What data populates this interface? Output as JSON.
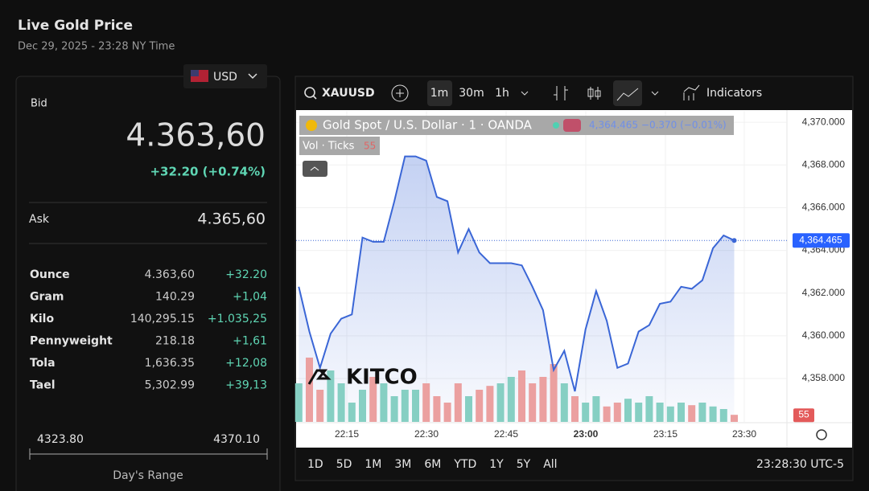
{
  "header": {
    "title": "Live Gold Price",
    "timestamp": "Dec 29, 2025 - 23:28 NY Time"
  },
  "currency": "USD",
  "quote": {
    "bid_label": "Bid",
    "bid": "4.363,60",
    "change": "+32.20 (+0.74%)",
    "ask_label": "Ask",
    "ask": "4.365,60"
  },
  "table": {
    "rows": [
      [
        "Ounce",
        "4.363,60",
        "+32.20"
      ],
      [
        "Gram",
        "140.29",
        "+1,04"
      ],
      [
        "Kilo",
        "140,295.15",
        "+1.035,25"
      ],
      [
        "Pennyweight",
        "218.18",
        "+1,61"
      ],
      [
        "Tola",
        "1,636.35",
        "+12,08"
      ],
      [
        "Tael",
        "5,302.99",
        "+39,13"
      ]
    ]
  },
  "range": {
    "low": "4323.80",
    "high": "4370.10",
    "label": "Day's Range"
  },
  "toolbar": {
    "symbol": "XAUUSD",
    "intervals": [
      "1m",
      "30m",
      "1h"
    ],
    "indicators": "Indicators"
  },
  "chart": {
    "type": "area",
    "title": "Gold Spot / U.S. Dollar · 1 · OANDA",
    "legend_values": "4,364.465 −0.370 (−0.01%)",
    "watermark": "KITCO",
    "x": [
      "22:06",
      "22:08",
      "22:10",
      "22:12",
      "22:14",
      "22:16",
      "22:18",
      "22:20",
      "22:22",
      "22:24",
      "22:26",
      "22:28",
      "22:30",
      "22:32",
      "22:34",
      "22:36",
      "22:38",
      "22:40",
      "22:42",
      "22:44",
      "22:46",
      "22:48",
      "22:50",
      "22:52",
      "22:54",
      "22:56",
      "22:58",
      "23:00",
      "23:02",
      "23:04",
      "23:06",
      "23:08",
      "23:10",
      "23:12",
      "23:14",
      "23:16",
      "23:18",
      "23:20",
      "23:22",
      "23:24",
      "23:26",
      "23:28"
    ],
    "values": [
      4362.3,
      4360.2,
      4358.5,
      4360.1,
      4360.8,
      4361.0,
      4364.6,
      4364.4,
      4364.4,
      4366.3,
      4368.4,
      4368.4,
      4368.2,
      4366.5,
      4366.3,
      4363.9,
      4365.0,
      4363.9,
      4363.4,
      4363.4,
      4363.4,
      4363.3,
      4362.3,
      4361.2,
      4358.4,
      4359.3,
      4357.4,
      4360.3,
      4362.1,
      4360.7,
      4358.5,
      4358.7,
      4360.2,
      4360.5,
      4361.5,
      4361.6,
      4362.3,
      4362.2,
      4362.6,
      4364.1,
      4364.7,
      4364.465
    ],
    "color": "#3a66d6",
    "ylim": [
      4355.97,
      4370.53
    ],
    "yticks": [
      {
        "value": 4358,
        "label": "4,358.000"
      },
      {
        "value": 4360,
        "label": "4,360.000"
      },
      {
        "value": 4362,
        "label": "4,362.000"
      },
      {
        "value": 4364,
        "label": "4,364.000"
      },
      {
        "value": 4366,
        "label": "4,366.000"
      },
      {
        "value": 4368,
        "label": "4,368.000"
      },
      {
        "value": 4370,
        "label": "4,370.000"
      }
    ],
    "last_price": {
      "value": 4364.465,
      "label": "4,364.465"
    },
    "time_ticks": [
      "22:15",
      "22:30",
      "22:45",
      "23:00",
      "23:15",
      "23:30"
    ],
    "volume": {
      "name": "Vol · Ticks",
      "last": 55,
      "lim": [
        0,
        600
      ],
      "up_color": "#86cfc3",
      "down_color": "#eba0a0",
      "values": [
        300,
        500,
        250,
        400,
        300,
        150,
        250,
        350,
        300,
        200,
        250,
        250,
        300,
        200,
        150,
        300,
        200,
        250,
        280,
        300,
        350,
        400,
        300,
        350,
        450,
        300,
        200,
        150,
        200,
        120,
        150,
        180,
        150,
        200,
        150,
        120,
        150,
        130,
        150,
        120,
        100,
        55
      ]
    }
  },
  "ranges": {
    "buttons": [
      "1D",
      "5D",
      "1M",
      "3M",
      "6M",
      "YTD",
      "1Y",
      "5Y",
      "All"
    ],
    "clock": "23:28:30 UTC-5"
  }
}
